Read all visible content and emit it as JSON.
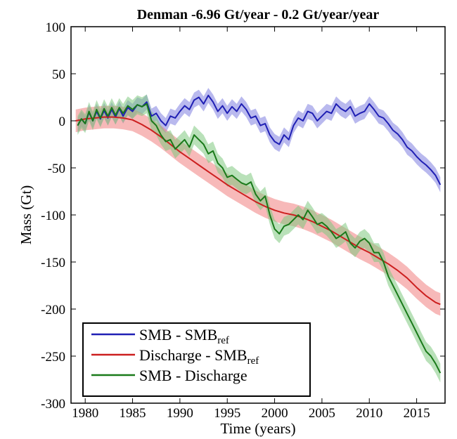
{
  "chart_data": {
    "type": "line",
    "title": "Denman -6.96 Gt/year - 0.2 Gt/year/year",
    "xlabel": "Time (years)",
    "ylabel": "Mass (Gt)",
    "xlim": [
      1978.5,
      2018
    ],
    "ylim": [
      -300,
      100
    ],
    "xticks": [
      1980,
      1985,
      1990,
      1995,
      2000,
      2005,
      2010,
      2015
    ],
    "yticks": [
      100,
      50,
      0,
      -50,
      -100,
      -150,
      -200,
      -250,
      -300
    ],
    "grid": false,
    "legend_position": "bottom-left",
    "series": [
      {
        "name": "SMB - SMB",
        "name_sub": "ref",
        "color": "#1f1fb4",
        "band_color": "#8080e0",
        "band_halfwidth": 8,
        "x": [
          1979.2,
          1979.6,
          1980.0,
          1980.4,
          1980.8,
          1981.2,
          1981.6,
          1982.0,
          1982.4,
          1982.8,
          1983.2,
          1983.6,
          1984.0,
          1984.5,
          1985.0,
          1985.5,
          1986.0,
          1986.5,
          1987.0,
          1987.5,
          1988.0,
          1988.5,
          1989.0,
          1989.5,
          1990.0,
          1990.5,
          1991.0,
          1991.5,
          1992.0,
          1992.5,
          1993.0,
          1993.5,
          1994.0,
          1994.5,
          1995.0,
          1995.5,
          1996.0,
          1996.5,
          1997.0,
          1997.5,
          1998.0,
          1998.5,
          1999.0,
          1999.5,
          2000.0,
          2000.5,
          2001.0,
          2001.5,
          2002.0,
          2002.5,
          2003.0,
          2003.5,
          2004.0,
          2004.5,
          2005.0,
          2005.5,
          2006.0,
          2006.5,
          2007.0,
          2007.5,
          2008.0,
          2008.5,
          2009.0,
          2009.5,
          2010.0,
          2010.5,
          2011.0,
          2011.5,
          2012.0,
          2012.5,
          2013.0,
          2013.5,
          2014.0,
          2014.5,
          2015.0,
          2015.5,
          2016.0,
          2016.5,
          2017.0,
          2017.5
        ],
        "y": [
          -5,
          2,
          -3,
          9,
          0,
          10,
          2,
          11,
          3,
          12,
          4,
          13,
          5,
          14,
          10,
          17,
          15,
          20,
          5,
          8,
          0,
          -5,
          5,
          3,
          10,
          16,
          12,
          22,
          25,
          18,
          27,
          20,
          10,
          16,
          8,
          15,
          10,
          18,
          12,
          3,
          5,
          -5,
          -3,
          -15,
          -22,
          -25,
          -15,
          -20,
          -5,
          3,
          0,
          10,
          8,
          0,
          5,
          10,
          8,
          18,
          13,
          10,
          15,
          5,
          8,
          10,
          18,
          12,
          5,
          3,
          -3,
          -10,
          -14,
          -20,
          -28,
          -32,
          -38,
          -43,
          -47,
          -52,
          -58,
          -68
        ]
      },
      {
        "name": "Discharge - SMB",
        "name_sub": "ref",
        "color": "#cc1f1f",
        "band_color": "#f08080",
        "band_halfwidth": 12,
        "x": [
          1979,
          1980,
          1981,
          1982,
          1983,
          1984,
          1985,
          1986,
          1987,
          1988,
          1989,
          1990,
          1991,
          1992,
          1993,
          1994,
          1995,
          1996,
          1997,
          1998,
          1999,
          2000,
          2001,
          2002,
          2003,
          2004,
          2005,
          2006,
          2007,
          2008,
          2009,
          2010,
          2011,
          2012,
          2013,
          2014,
          2015,
          2016,
          2017,
          2017.5
        ],
        "y": [
          0,
          2,
          3,
          4,
          4,
          3,
          1,
          -4,
          -10,
          -17,
          -25,
          -33,
          -40,
          -47,
          -54,
          -61,
          -68,
          -74,
          -80,
          -86,
          -91,
          -95,
          -98,
          -100,
          -103,
          -107,
          -112,
          -117,
          -123,
          -129,
          -135,
          -140,
          -146,
          -152,
          -159,
          -167,
          -177,
          -186,
          -193,
          -195
        ]
      },
      {
        "name": "SMB - Discharge",
        "color": "#1a7a1a",
        "band_color": "#80c880",
        "band_halfwidth": 10,
        "x": [
          1979.2,
          1979.6,
          1980.0,
          1980.4,
          1980.8,
          1981.2,
          1981.6,
          1982.0,
          1982.4,
          1982.8,
          1983.2,
          1983.6,
          1984.0,
          1984.5,
          1985.0,
          1985.5,
          1986.0,
          1986.5,
          1987.0,
          1987.5,
          1988.0,
          1988.5,
          1989.0,
          1989.5,
          1990.0,
          1990.5,
          1991.0,
          1991.5,
          1992.0,
          1992.5,
          1993.0,
          1993.5,
          1994.0,
          1994.5,
          1995.0,
          1995.5,
          1996.0,
          1996.5,
          1997.0,
          1997.5,
          1998.0,
          1998.5,
          1999.0,
          1999.5,
          2000.0,
          2000.5,
          2001.0,
          2001.5,
          2002.0,
          2002.5,
          2003.0,
          2003.5,
          2004.0,
          2004.5,
          2005.0,
          2005.5,
          2006.0,
          2006.5,
          2007.0,
          2007.5,
          2008.0,
          2008.5,
          2009.0,
          2009.5,
          2010.0,
          2010.5,
          2011.0,
          2011.5,
          2012.0,
          2012.5,
          2013.0,
          2013.5,
          2014.0,
          2014.5,
          2015.0,
          2015.5,
          2016.0,
          2016.5,
          2017.0,
          2017.5
        ],
        "y": [
          -5,
          2,
          -3,
          10,
          0,
          12,
          3,
          13,
          5,
          14,
          6,
          14,
          8,
          16,
          12,
          17,
          15,
          18,
          0,
          -5,
          -15,
          -22,
          -20,
          -30,
          -25,
          -20,
          -28,
          -15,
          -20,
          -25,
          -35,
          -32,
          -45,
          -50,
          -60,
          -58,
          -62,
          -66,
          -68,
          -65,
          -78,
          -85,
          -80,
          -100,
          -115,
          -120,
          -112,
          -110,
          -105,
          -100,
          -105,
          -95,
          -102,
          -110,
          -108,
          -112,
          -118,
          -125,
          -122,
          -118,
          -130,
          -135,
          -128,
          -125,
          -130,
          -140,
          -140,
          -150,
          -165,
          -175,
          -185,
          -195,
          -205,
          -215,
          -225,
          -235,
          -245,
          -250,
          -258,
          -268
        ]
      }
    ]
  }
}
